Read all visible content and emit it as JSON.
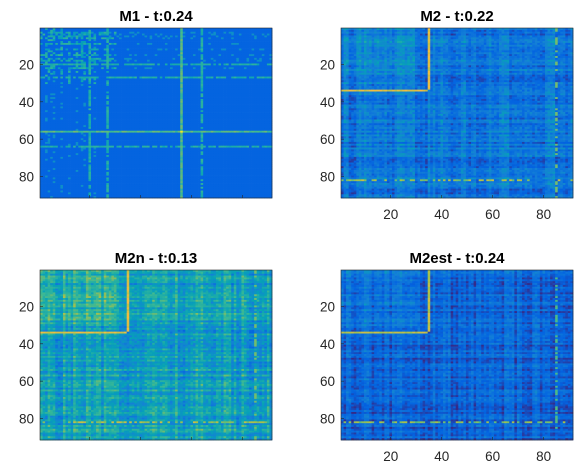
{
  "chart_data": [
    {
      "type": "heatmap",
      "title": "M1 - t:0.24",
      "colormap": "parula",
      "n": 91,
      "xlim": [
        0.5,
        91.5
      ],
      "ylim": [
        0.5,
        91.5
      ],
      "xticks": [
        "20",
        "40",
        "60",
        "80"
      ],
      "yticks": [
        "20",
        "40",
        "60",
        "80"
      ],
      "x_axis_tick_labels_shown": false,
      "background_value": 0.15,
      "strong_lines": [
        56
      ],
      "strong_line_value": 0.6,
      "medium_lines": [
        20,
        27,
        64
      ],
      "medium_line_value": 0.5,
      "sparse_lines": [
        3,
        4,
        5,
        6,
        9,
        12,
        15,
        17,
        18,
        22
      ],
      "sparse_line_value": 0.45
    },
    {
      "type": "heatmap",
      "title": "M2 - t:0.22",
      "colormap": "parula",
      "n": 91,
      "xlim": [
        0.5,
        91.5
      ],
      "ylim": [
        0.5,
        91.5
      ],
      "xticks": [
        "20",
        "40",
        "60",
        "80"
      ],
      "yticks": [
        "20",
        "40",
        "60",
        "80"
      ],
      "x_axis_tick_labels_shown": true,
      "background_value": 0.22,
      "noise_amplitude": 0.14,
      "highlight_row": 34,
      "highlight_col": 35,
      "highlight_value": 0.8,
      "dashed_row": 82
    },
    {
      "type": "heatmap",
      "title": "M2n - t:0.13",
      "colormap": "parula",
      "n": 91,
      "xlim": [
        0.5,
        91.5
      ],
      "ylim": [
        0.5,
        91.5
      ],
      "xticks": [
        "20",
        "40",
        "60",
        "80"
      ],
      "yticks": [
        "20",
        "40",
        "60",
        "80"
      ],
      "x_axis_tick_labels_shown": false,
      "background_value": 0.42,
      "noise_amplitude": 0.16,
      "highlight_row": 34,
      "highlight_col": 35,
      "highlight_value": 0.8,
      "dashed_row": 82
    },
    {
      "type": "heatmap",
      "title": "M2est - t:0.24",
      "colormap": "parula",
      "n": 91,
      "xlim": [
        0.5,
        91.5
      ],
      "ylim": [
        0.5,
        91.5
      ],
      "xticks": [
        "20",
        "40",
        "60",
        "80"
      ],
      "yticks": [
        "20",
        "40",
        "60",
        "80"
      ],
      "x_axis_tick_labels_shown": true,
      "background_value": 0.15,
      "noise_amplitude": 0.12,
      "highlight_row": 34,
      "highlight_col": 35,
      "highlight_value": 0.75,
      "dashed_row": 82
    }
  ]
}
